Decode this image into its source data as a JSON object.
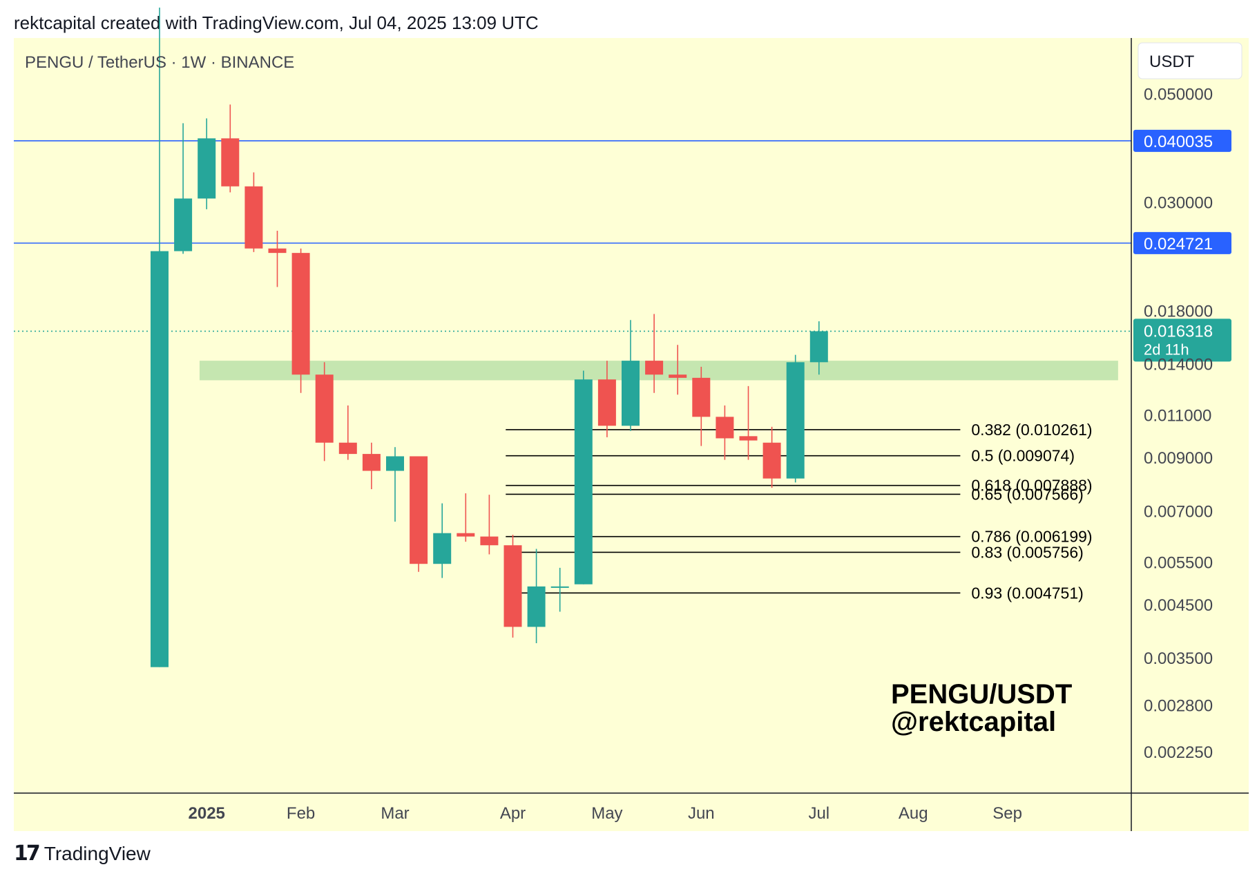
{
  "header": "rektcapital created with TradingView.com, Jul 04, 2025 13:09 UTC",
  "footer": {
    "logo_mark": "17",
    "logo_text": "TradingView"
  },
  "symbol_title": "PENGU / TetherUS · 1W · BINANCE",
  "currency_label": "USDT",
  "watermark": {
    "line1": "PENGU/USDT",
    "line2": "@rektcapital"
  },
  "colors": {
    "background": "#feffd6",
    "bull": "#26a69a",
    "bear": "#ef5350",
    "level_line": "#2962ff",
    "demand_zone": "#c5e6b0",
    "fib_line": "#000000"
  },
  "chart_data": {
    "type": "candlestick",
    "interval": "1W",
    "y_scale": "log",
    "y_range": [
      0.00185,
      0.065
    ],
    "y_ticks": [
      "0.050000",
      "0.030000",
      "0.018000",
      "0.014000",
      "0.011000",
      "0.009000",
      "0.007000",
      "0.005500",
      "0.004500",
      "0.003500",
      "0.002800",
      "0.002250"
    ],
    "x_labels": [
      {
        "label": "2025",
        "index": 2.0,
        "bold": true
      },
      {
        "label": "Feb",
        "index": 6.0
      },
      {
        "label": "Mar",
        "index": 10.0
      },
      {
        "label": "Apr",
        "index": 15.0
      },
      {
        "label": "May",
        "index": 19.0
      },
      {
        "label": "Jun",
        "index": 23.0
      },
      {
        "label": "Jul",
        "index": 28.0
      },
      {
        "label": "Aug",
        "index": 32.0
      },
      {
        "label": "Sep",
        "index": 36.0
      }
    ],
    "candles": [
      {
        "o": 0.00335,
        "h": 0.075,
        "l": 0.00335,
        "c": 0.0238
      },
      {
        "o": 0.0238,
        "h": 0.0435,
        "l": 0.0235,
        "c": 0.0305
      },
      {
        "o": 0.0305,
        "h": 0.0445,
        "l": 0.029,
        "c": 0.0405
      },
      {
        "o": 0.0405,
        "h": 0.0475,
        "l": 0.0314,
        "c": 0.0323
      },
      {
        "o": 0.0323,
        "h": 0.0345,
        "l": 0.0237,
        "c": 0.0241
      },
      {
        "o": 0.0241,
        "h": 0.0262,
        "l": 0.0201,
        "c": 0.0236
      },
      {
        "o": 0.0236,
        "h": 0.0241,
        "l": 0.0122,
        "c": 0.0133
      },
      {
        "o": 0.0133,
        "h": 0.0141,
        "l": 0.00885,
        "c": 0.00965
      },
      {
        "o": 0.00965,
        "h": 0.0115,
        "l": 0.0089,
        "c": 0.00915
      },
      {
        "o": 0.00915,
        "h": 0.00965,
        "l": 0.00775,
        "c": 0.00845
      },
      {
        "o": 0.00845,
        "h": 0.00945,
        "l": 0.00665,
        "c": 0.00905
      },
      {
        "o": 0.00905,
        "h": 0.00905,
        "l": 0.00525,
        "c": 0.00545
      },
      {
        "o": 0.00545,
        "h": 0.00725,
        "l": 0.0051,
        "c": 0.0063
      },
      {
        "o": 0.0063,
        "h": 0.0076,
        "l": 0.00605,
        "c": 0.0062
      },
      {
        "o": 0.0062,
        "h": 0.00755,
        "l": 0.0057,
        "c": 0.00595
      },
      {
        "o": 0.00595,
        "h": 0.00625,
        "l": 0.00385,
        "c": 0.00405
      },
      {
        "o": 0.00405,
        "h": 0.00585,
        "l": 0.00375,
        "c": 0.0049
      },
      {
        "o": 0.0049,
        "h": 0.00535,
        "l": 0.00435,
        "c": 0.0049
      },
      {
        "o": 0.00495,
        "h": 0.01355,
        "l": 0.00495,
        "c": 0.013
      },
      {
        "o": 0.013,
        "h": 0.0142,
        "l": 0.0099,
        "c": 0.01045
      },
      {
        "o": 0.01045,
        "h": 0.0172,
        "l": 0.0102,
        "c": 0.0142
      },
      {
        "o": 0.0142,
        "h": 0.0177,
        "l": 0.0122,
        "c": 0.0133
      },
      {
        "o": 0.0133,
        "h": 0.0153,
        "l": 0.0121,
        "c": 0.0131
      },
      {
        "o": 0.0131,
        "h": 0.0138,
        "l": 0.0095,
        "c": 0.0109
      },
      {
        "o": 0.0109,
        "h": 0.0115,
        "l": 0.0089,
        "c": 0.00985
      },
      {
        "o": 0.00995,
        "h": 0.0126,
        "l": 0.0089,
        "c": 0.00975
      },
      {
        "o": 0.00965,
        "h": 0.0104,
        "l": 0.0078,
        "c": 0.00815
      },
      {
        "o": 0.00815,
        "h": 0.0146,
        "l": 0.008,
        "c": 0.0141
      },
      {
        "o": 0.0141,
        "h": 0.0171,
        "l": 0.0133,
        "c": 0.016318
      }
    ],
    "horizontal_levels": [
      {
        "price": 0.040035,
        "label": "0.040035"
      },
      {
        "price": 0.024721,
        "label": "0.024721"
      }
    ],
    "current_price": {
      "value": 0.016318,
      "label": "0.016318",
      "countdown": "2d 11h"
    },
    "zone": {
      "top": 0.0142,
      "bottom": 0.01295,
      "from_index": 1.7,
      "to_index": 40.7
    },
    "fib_levels": [
      {
        "label": "0.382 (0.010261)",
        "price": 0.010261
      },
      {
        "label": "0.5 (0.009074)",
        "price": 0.009074
      },
      {
        "label": "0.618 (0.007888)",
        "price": 0.007888
      },
      {
        "label": "0.65 (0.007566)",
        "price": 0.007566
      },
      {
        "label": "0.786 (0.006199)",
        "price": 0.006199
      },
      {
        "label": "0.83 (0.005756)",
        "price": 0.005756
      },
      {
        "label": "0.93 (0.004751)",
        "price": 0.004751
      }
    ],
    "fib_from_index": 14.7,
    "fib_to_index": 34.0
  }
}
